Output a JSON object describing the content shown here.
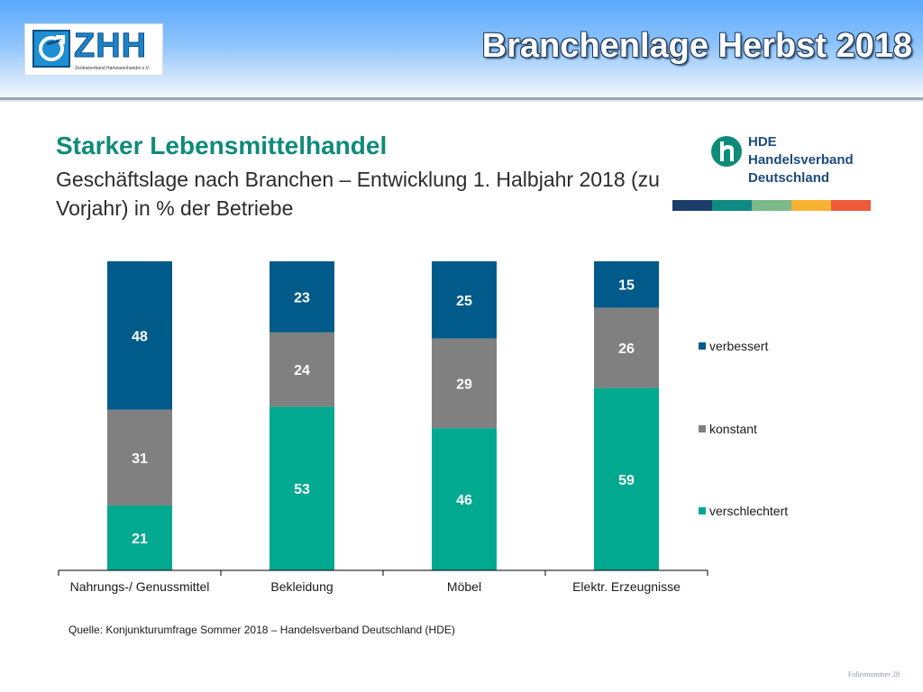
{
  "header": {
    "title": "Branchenlage Herbst 2018",
    "zhh_logo_text": "ZHH",
    "zhh_logo_subtext": "Zentralverband Hartwarenhandel e.V."
  },
  "hde_logo": {
    "line1": "HDE",
    "line2": "Handelsverband",
    "line3": "Deutschland",
    "stripe_colors": [
      "#1d3e6b",
      "#0f8a83",
      "#7bb88a",
      "#f7b232",
      "#ee5a3a"
    ]
  },
  "chart_data": {
    "type": "bar",
    "stacked": true,
    "title": "Starker Lebensmittelhandel",
    "subtitle": "Geschäftslage nach Branchen – Entwicklung 1. Halbjahr 2018 (zu Vorjahr) in % der Betriebe",
    "categories": [
      "Nahrungs-/ Genussmittel",
      "Bekleidung",
      "Möbel",
      "Elektr. Erzeugnisse"
    ],
    "series": [
      {
        "name": "verschlechtert",
        "color": "#00a98f",
        "values": [
          21,
          53,
          46,
          59
        ]
      },
      {
        "name": "konstant",
        "color": "#808080",
        "values": [
          31,
          24,
          29,
          26
        ]
      },
      {
        "name": "verbessert",
        "color": "#005b8a",
        "values": [
          48,
          23,
          25,
          15
        ]
      }
    ],
    "legend_order": [
      "verbessert",
      "konstant",
      "verschlechtert"
    ],
    "legend_position": "right",
    "ylim": [
      0,
      100
    ],
    "grid": false
  },
  "source": "Quelle: Konjunkturumfrage Sommer 2018 – Handelsverband Deutschland (HDE)",
  "footer_note": "Foliennummer 28"
}
